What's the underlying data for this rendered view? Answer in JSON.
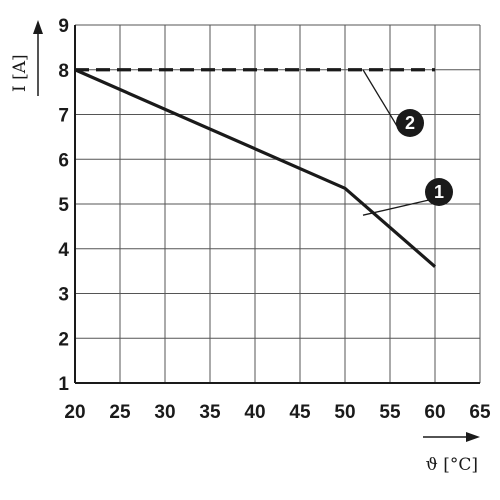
{
  "chart_data": {
    "type": "line",
    "title": "",
    "xlabel": "ϑ [°C]",
    "ylabel": "I [A]",
    "xlim": [
      20,
      65
    ],
    "ylim": [
      1,
      9
    ],
    "x_ticks": [
      "20",
      "25",
      "30",
      "35",
      "40",
      "45",
      "50",
      "55",
      "60",
      "65"
    ],
    "y_ticks": [
      "1",
      "2",
      "3",
      "4",
      "5",
      "6",
      "7",
      "8",
      "9"
    ],
    "grid": true,
    "legend": "none",
    "series": [
      {
        "marker": "1",
        "style": "solid",
        "color": "#1a1a1a",
        "points": [
          [
            20,
            8.0
          ],
          [
            50,
            5.35
          ],
          [
            60,
            3.6
          ]
        ]
      },
      {
        "marker": "2",
        "style": "dashed",
        "color": "#1a1a1a",
        "points": [
          [
            20,
            8.0
          ],
          [
            60,
            8.0
          ]
        ]
      }
    ]
  }
}
